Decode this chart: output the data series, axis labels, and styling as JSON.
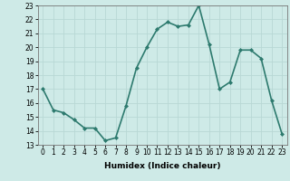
{
  "x": [
    0,
    1,
    2,
    3,
    4,
    5,
    6,
    7,
    8,
    9,
    10,
    11,
    12,
    13,
    14,
    15,
    16,
    17,
    18,
    19,
    20,
    21,
    22,
    23
  ],
  "y": [
    17.0,
    15.5,
    15.3,
    14.8,
    14.2,
    14.2,
    13.3,
    13.5,
    15.8,
    18.5,
    20.0,
    21.3,
    21.8,
    21.5,
    21.6,
    23.0,
    20.2,
    17.0,
    17.5,
    19.8,
    19.8,
    19.2,
    16.2,
    13.8
  ],
  "line_color": "#2d7a6e",
  "marker": "D",
  "marker_size": 2.0,
  "bg_color": "#ceeae7",
  "grid_color": "#b8d8d5",
  "xlabel": "Humidex (Indice chaleur)",
  "xlabel_fontsize": 6.5,
  "tick_fontsize": 5.5,
  "ylim": [
    13,
    23
  ],
  "yticks": [
    13,
    14,
    15,
    16,
    17,
    18,
    19,
    20,
    21,
    22,
    23
  ],
  "xticks": [
    0,
    1,
    2,
    3,
    4,
    5,
    6,
    7,
    8,
    9,
    10,
    11,
    12,
    13,
    14,
    15,
    16,
    17,
    18,
    19,
    20,
    21,
    22,
    23
  ],
  "linewidth": 1.2
}
